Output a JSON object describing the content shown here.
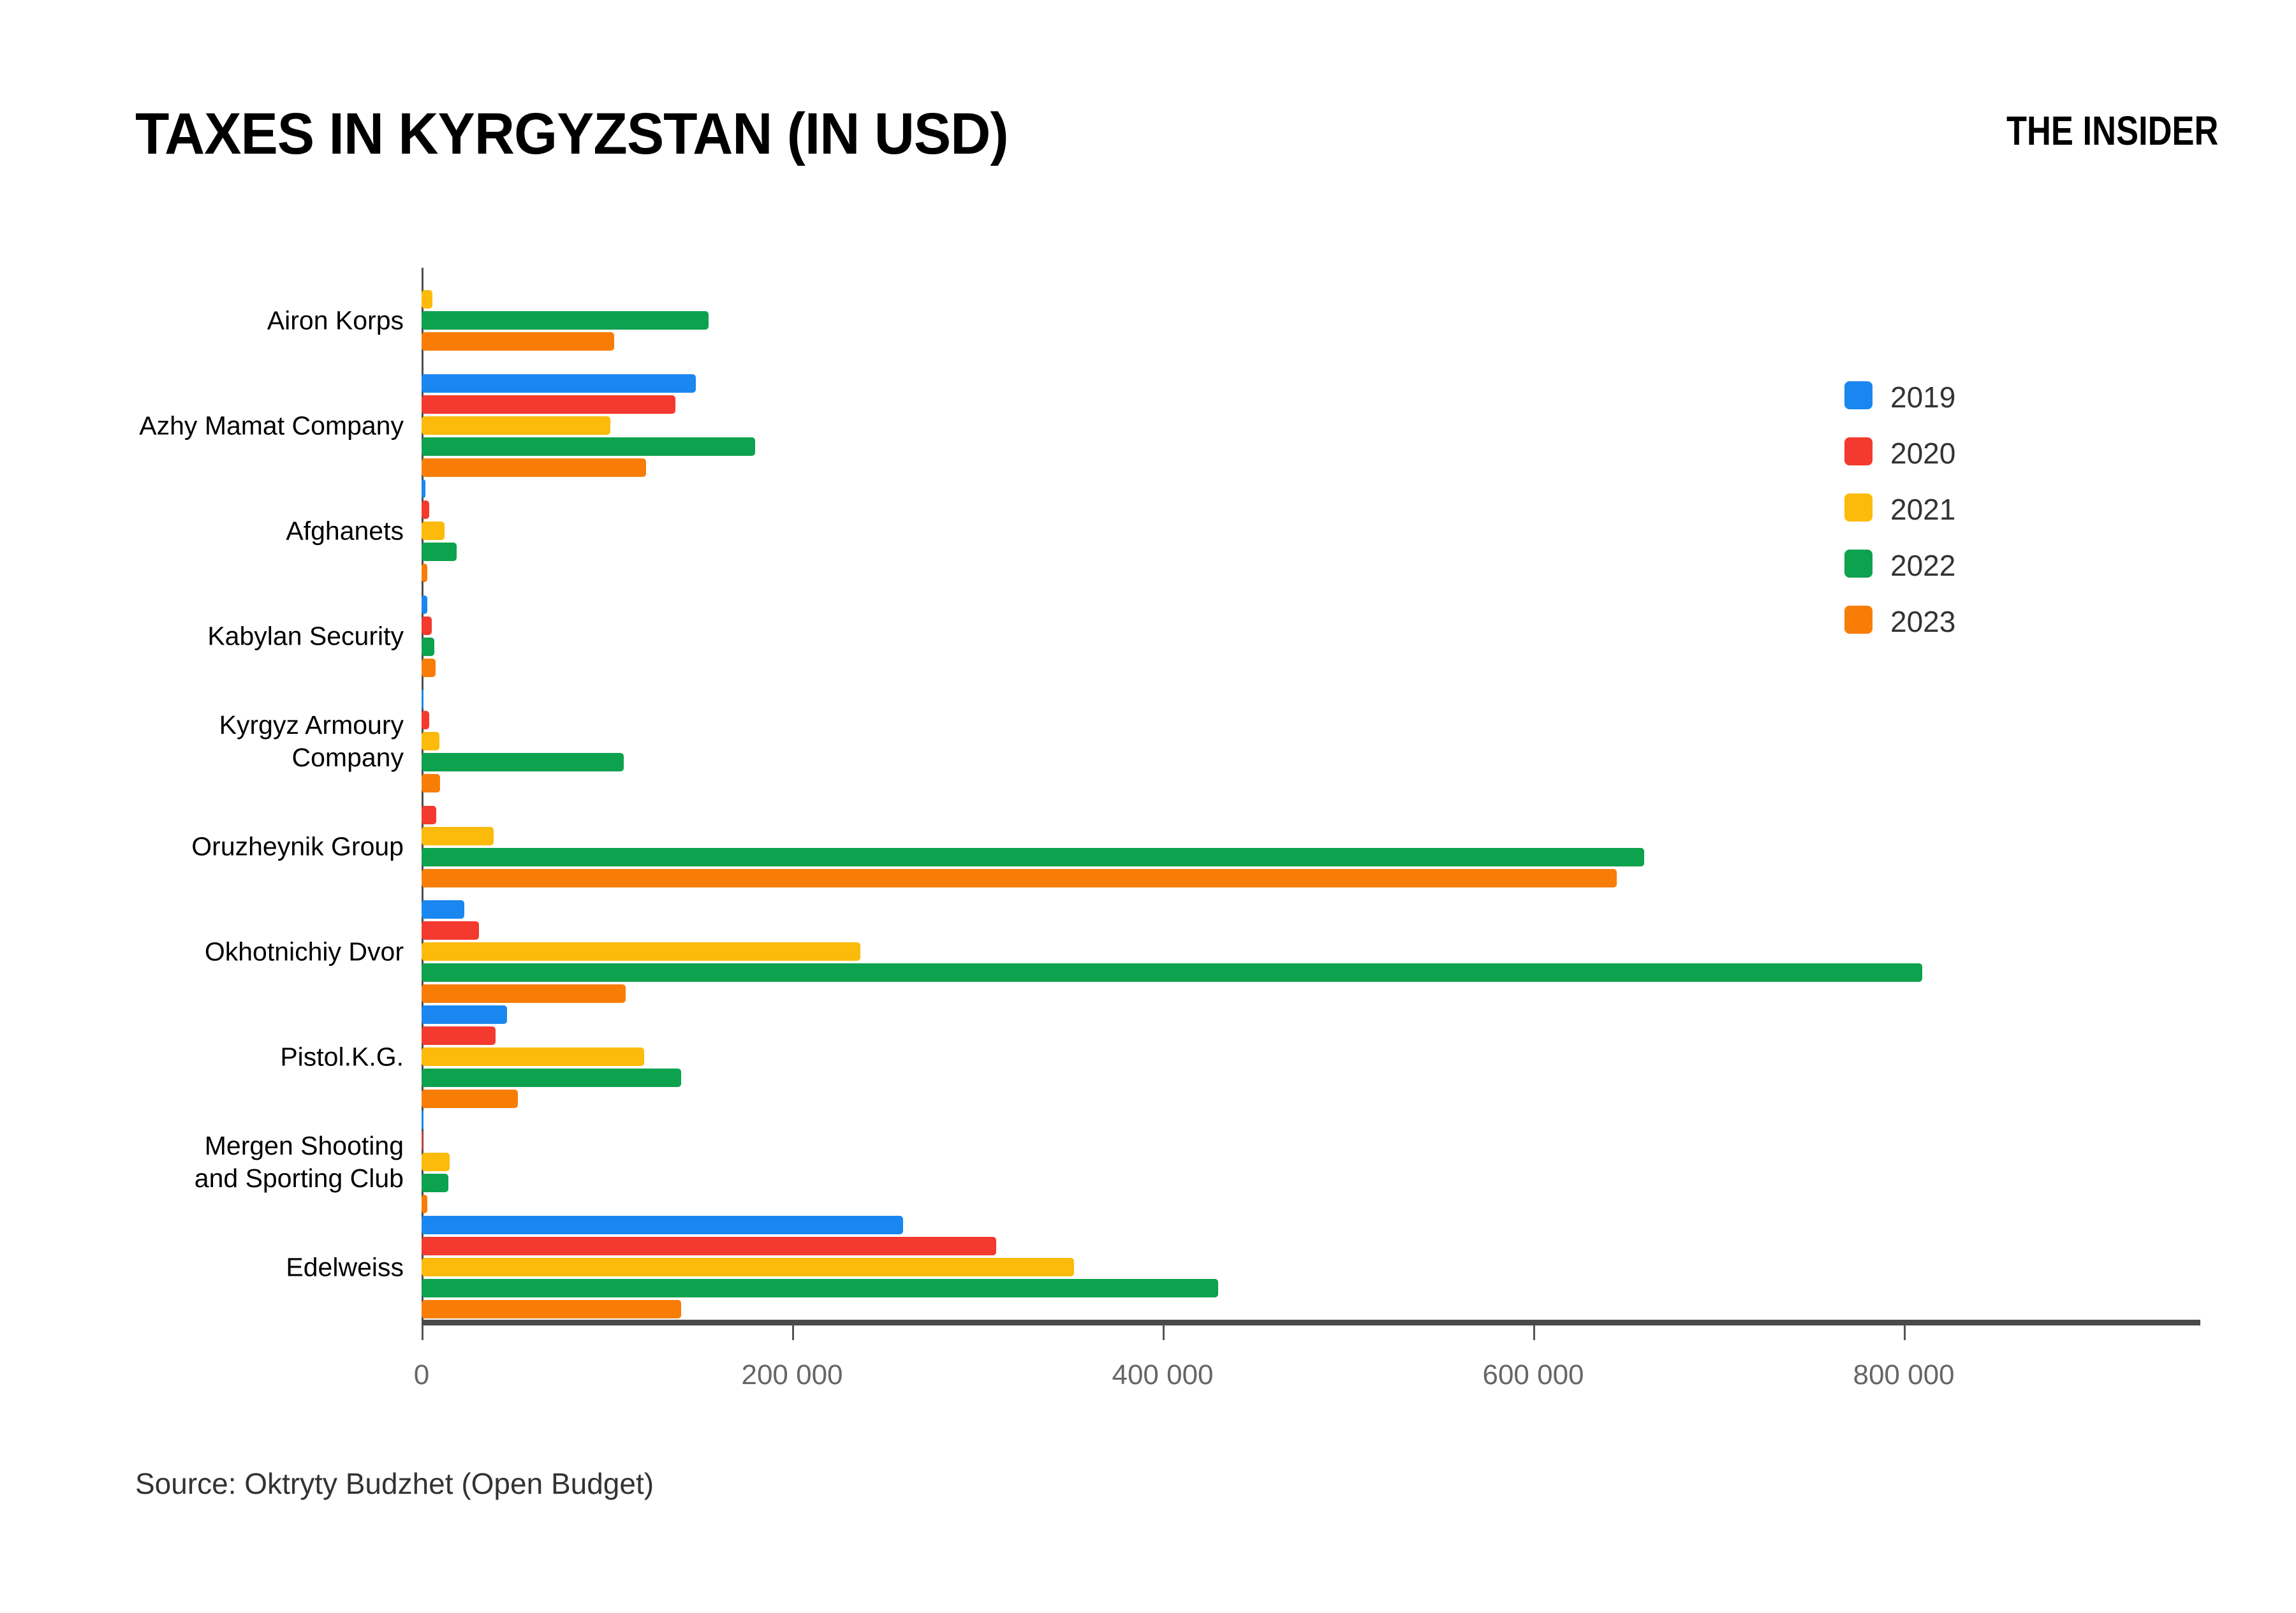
{
  "header": {
    "title": "TAXES IN KYRGYZSTAN (IN USD)",
    "logo": "THE INSIDER"
  },
  "source": "Source: Oktryty Budzhet (Open Budget)",
  "colors": {
    "axis_line": "#4a4a4a",
    "tick_label": "#666666",
    "category_label": "#000000",
    "background": "#ffffff"
  },
  "chart_data": {
    "type": "bar",
    "orientation": "horizontal",
    "title": "TAXES IN KYRGYZSTAN (IN USD)",
    "xlabel": "",
    "ylabel": "",
    "grid": false,
    "legend_position": "right",
    "xlim": [
      0,
      958000
    ],
    "xticks": [
      0,
      200000,
      400000,
      600000,
      800000
    ],
    "xtick_labels": [
      "0",
      "200 000",
      "400 000",
      "600 000",
      "800 000"
    ],
    "categories": [
      "Airon Korps",
      "Azhy Mamat Company",
      "Afghanets",
      "Kabylan Security",
      "Kyrgyz Armoury\nCompany",
      "Oruzheynik Group",
      "Okhotnichiy Dvor",
      "Pistol.K.G.",
      "Mergen Shooting\nand Sporting Club",
      "Edelweiss"
    ],
    "series": [
      {
        "name": "2019",
        "color": "#1a87f0",
        "values": [
          null,
          148000,
          2000,
          3000,
          1200,
          null,
          23000,
          46000,
          1000,
          260000
        ]
      },
      {
        "name": "2020",
        "color": "#f4392f",
        "values": [
          null,
          137000,
          4000,
          5500,
          4000,
          8000,
          31000,
          40000,
          700,
          310000
        ]
      },
      {
        "name": "2021",
        "color": "#fcba0a",
        "values": [
          6000,
          102000,
          12500,
          null,
          9500,
          39000,
          237000,
          120000,
          15000,
          352000
        ]
      },
      {
        "name": "2022",
        "color": "#0da24e",
        "values": [
          155000,
          180000,
          19000,
          7000,
          109000,
          660000,
          810000,
          140000,
          14500,
          430000
        ]
      },
      {
        "name": "2023",
        "color": "#f87d07",
        "values": [
          104000,
          121000,
          3000,
          7500,
          10000,
          645000,
          110000,
          52000,
          3000,
          140000
        ]
      }
    ]
  }
}
